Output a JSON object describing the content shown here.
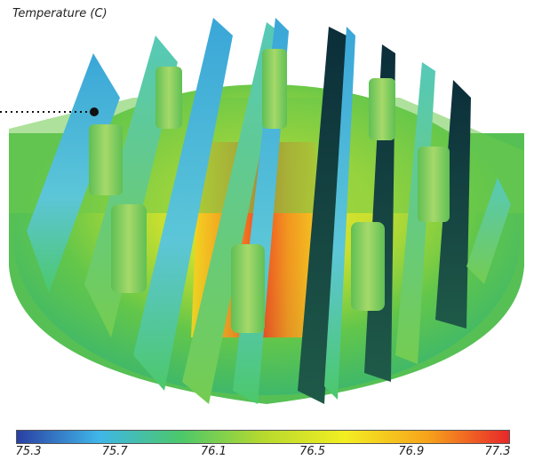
{
  "title": "Temperature (C)",
  "legend": {
    "colors": [
      "#2a3fa3",
      "#3fb6e8",
      "#4cc86a",
      "#b6d92e",
      "#f3ee22",
      "#f7a41b",
      "#e8272a"
    ],
    "ticks": [
      "75.3",
      "75.7",
      "76.1",
      "76.5",
      "76.9",
      "77.3"
    ],
    "min": 75.3,
    "max": 77.3
  },
  "colors": {
    "base_green": "#5fc54a",
    "hot_center": "#f03a22",
    "fin_blue": "#49b7d8",
    "fin_dark": "#0f3a3a",
    "pin_green": "#8ed06a"
  }
}
